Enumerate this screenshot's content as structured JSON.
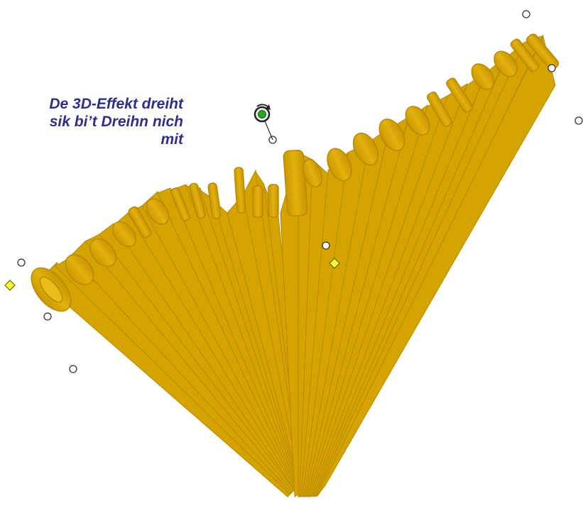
{
  "caption": {
    "line1": "De 3D-Effekt dreiht",
    "line2": "sik bi’t Dreihn nich",
    "line3": "mit"
  },
  "wordart": {
    "text": "Oosterfüür in Poggenhusen",
    "color": "#D4A300",
    "shadow_color": "#B88A00",
    "highlight_color": "#F0C21E"
  },
  "handles": {
    "sizing_handle_color": "#FFFFFF",
    "adjust_handle_color": "#FFFF33",
    "rotate_handle_color": "#22AA22",
    "rotate_icon": "rotate-handle-icon"
  }
}
